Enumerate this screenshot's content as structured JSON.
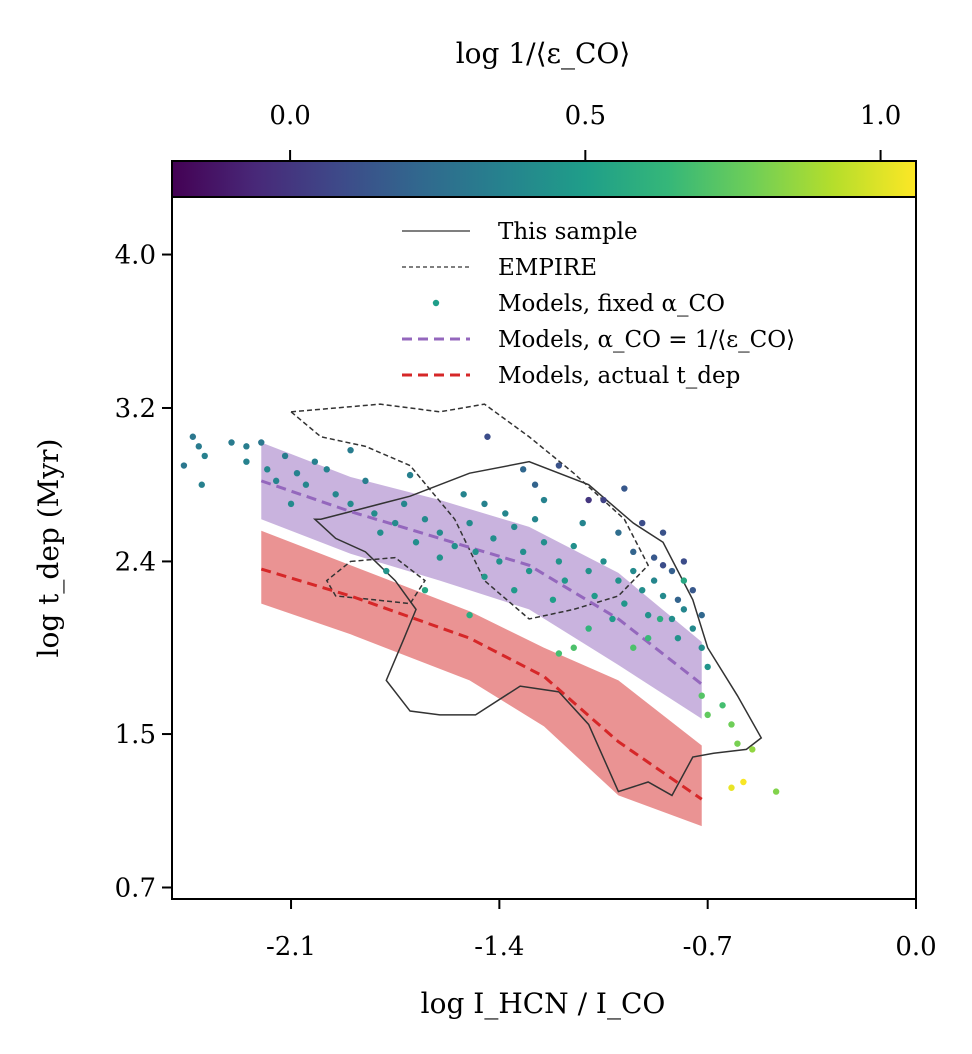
{
  "chart_data": {
    "type": "scatter",
    "title": "",
    "xlabel": "log I_HCN / I_CO",
    "ylabel": "log t_dep (Myr)",
    "colorbar_label": "log 1/⟨ε_CO⟩",
    "xlim": [
      -2.5,
      0.0
    ],
    "ylim": [
      0.64,
      4.3
    ],
    "x_ticks": [
      -2.1,
      -1.4,
      -0.7,
      0.0
    ],
    "x_tick_labels": [
      "-2.1",
      "-1.4",
      "-0.7",
      "0.0"
    ],
    "y_ticks": [
      0.7,
      1.5,
      2.4,
      3.2,
      4.0
    ],
    "y_tick_labels": [
      "0.7",
      "1.5",
      "2.4",
      "3.2",
      "4.0"
    ],
    "colorbar_range": [
      -0.2,
      1.06
    ],
    "colorbar_ticks": [
      0.0,
      0.5,
      1.0
    ],
    "colorbar_tick_labels": [
      "0.0",
      "0.5",
      "1.0"
    ],
    "colorbar_colors": [
      "#440154",
      "#482878",
      "#3e4989",
      "#31688e",
      "#26828e",
      "#1f9e89",
      "#35b779",
      "#6ece58",
      "#b5de2b",
      "#fde725"
    ],
    "legend": {
      "position": "top-center",
      "entries": [
        {
          "label": "This sample",
          "style": "solid-line",
          "color": "#333333"
        },
        {
          "label": "EMPIRE",
          "style": "dashed-line",
          "color": "#333333"
        },
        {
          "label": "Models, fixed α_CO",
          "style": "dot",
          "color": "#1f9e89"
        },
        {
          "label": "Models, α_CO = 1/⟨ε_CO⟩",
          "style": "dashed-line",
          "color": "#9467bd"
        },
        {
          "label": "Models, actual t_dep",
          "style": "dashed-line",
          "color": "#d62728"
        }
      ]
    },
    "series": [
      {
        "name": "Models, α_CO = 1/⟨ε_CO⟩",
        "type": "line-with-band",
        "color": "#9467bd",
        "x": [
          -2.2,
          -1.9,
          -1.6,
          -1.3,
          -1.0,
          -0.72
        ],
        "y": [
          2.82,
          2.66,
          2.52,
          2.38,
          2.1,
          1.76
        ],
        "y_low": [
          2.62,
          2.44,
          2.3,
          2.15,
          1.86,
          1.58
        ],
        "y_high": [
          3.02,
          2.84,
          2.72,
          2.58,
          2.34,
          1.98
        ]
      },
      {
        "name": "Models, actual t_dep",
        "type": "line-with-band",
        "color": "#d62728",
        "x": [
          -2.2,
          -1.9,
          -1.5,
          -1.25,
          -1.0,
          -0.72
        ],
        "y": [
          2.36,
          2.22,
          2.0,
          1.8,
          1.46,
          1.16
        ],
        "y_low": [
          2.18,
          2.02,
          1.78,
          1.54,
          1.18,
          1.02
        ],
        "y_high": [
          2.56,
          2.38,
          2.14,
          1.95,
          1.78,
          1.44
        ]
      },
      {
        "name": "This sample",
        "type": "contour",
        "style": "solid",
        "color": "#333333",
        "contours": [
          {
            "x": [
              -2.0,
              -1.85,
              -1.7,
              -1.5,
              -1.3,
              -1.1,
              -0.95,
              -0.85,
              -0.75,
              -0.7,
              -0.6,
              -0.52,
              -0.57,
              -0.68,
              -0.75,
              -0.82,
              -0.9,
              -1.0,
              -1.1,
              -1.2,
              -1.33,
              -1.48,
              -1.6,
              -1.7,
              -1.78,
              -1.72,
              -1.68,
              -1.75,
              -1.85,
              -1.95,
              -2.02
            ],
            "y": [
              2.62,
              2.68,
              2.74,
              2.86,
              2.92,
              2.8,
              2.6,
              2.5,
              2.2,
              1.95,
              1.7,
              1.48,
              1.42,
              1.4,
              1.38,
              1.18,
              1.25,
              1.2,
              1.55,
              1.72,
              1.75,
              1.6,
              1.6,
              1.62,
              1.78,
              2.0,
              2.15,
              2.3,
              2.45,
              2.52,
              2.62
            ]
          }
        ]
      },
      {
        "name": "EMPIRE",
        "type": "contour",
        "style": "dashed",
        "color": "#333333",
        "contours": [
          {
            "x": [
              -2.1,
              -1.95,
              -1.8,
              -1.6,
              -1.45,
              -1.3,
              -1.15,
              -0.98,
              -0.9,
              -1.0,
              -1.15,
              -1.3,
              -1.45,
              -1.55,
              -1.7,
              -1.85,
              -2.0,
              -2.1
            ],
            "y": [
              3.18,
              3.2,
              3.22,
              3.18,
              3.22,
              3.05,
              2.86,
              2.62,
              2.38,
              2.22,
              2.15,
              2.1,
              2.3,
              2.62,
              2.9,
              3.0,
              3.05,
              3.18
            ]
          },
          {
            "x": [
              -1.9,
              -1.75,
              -1.65,
              -1.7,
              -1.82,
              -1.95,
              -1.98,
              -1.9
            ],
            "y": [
              2.4,
              2.42,
              2.3,
              2.18,
              2.2,
              2.22,
              2.3,
              2.4
            ]
          }
        ]
      },
      {
        "name": "Models, fixed α_CO",
        "type": "scatter",
        "color_by": "log 1/⟨ε_CO⟩",
        "points": [
          [
            -2.43,
            3.05,
            0.3
          ],
          [
            -2.41,
            3.0,
            0.32
          ],
          [
            -2.39,
            2.95,
            0.35
          ],
          [
            -2.46,
            2.9,
            0.3
          ],
          [
            -2.4,
            2.8,
            0.35
          ],
          [
            -2.3,
            3.02,
            0.32
          ],
          [
            -2.25,
            3.0,
            0.34
          ],
          [
            -2.2,
            3.02,
            0.3
          ],
          [
            -2.25,
            2.92,
            0.36
          ],
          [
            -2.18,
            2.88,
            0.38
          ],
          [
            -2.12,
            2.95,
            0.33
          ],
          [
            -2.08,
            2.86,
            0.36
          ],
          [
            -2.05,
            2.8,
            0.38
          ],
          [
            -2.15,
            2.82,
            0.37
          ],
          [
            -2.1,
            2.7,
            0.4
          ],
          [
            -2.02,
            2.92,
            0.35
          ],
          [
            -1.98,
            2.88,
            0.36
          ],
          [
            -1.95,
            2.75,
            0.38
          ],
          [
            -1.9,
            2.7,
            0.4
          ],
          [
            -1.85,
            2.82,
            0.34
          ],
          [
            -1.82,
            2.65,
            0.41
          ],
          [
            -1.8,
            2.55,
            0.42
          ],
          [
            -1.75,
            2.6,
            0.4
          ],
          [
            -1.72,
            2.7,
            0.38
          ],
          [
            -1.68,
            2.5,
            0.42
          ],
          [
            -1.65,
            2.62,
            0.4
          ],
          [
            -1.6,
            2.55,
            0.41
          ],
          [
            -1.55,
            2.48,
            0.43
          ],
          [
            -1.5,
            2.6,
            0.4
          ],
          [
            -1.48,
            2.45,
            0.44
          ],
          [
            -1.45,
            2.7,
            0.36
          ],
          [
            -1.42,
            2.52,
            0.42
          ],
          [
            -1.4,
            2.4,
            0.44
          ],
          [
            -1.35,
            2.58,
            0.4
          ],
          [
            -1.32,
            2.45,
            0.42
          ],
          [
            -1.3,
            2.35,
            0.46
          ],
          [
            -1.28,
            2.62,
            0.38
          ],
          [
            -1.25,
            2.5,
            0.42
          ],
          [
            -1.2,
            2.4,
            0.45
          ],
          [
            -1.18,
            2.3,
            0.47
          ],
          [
            -1.15,
            2.48,
            0.43
          ],
          [
            -1.1,
            2.35,
            0.44
          ],
          [
            -1.08,
            2.22,
            0.48
          ],
          [
            -1.05,
            2.4,
            0.42
          ],
          [
            -1.0,
            2.3,
            0.44
          ],
          [
            -0.98,
            2.18,
            0.46
          ],
          [
            -0.95,
            2.35,
            0.4
          ],
          [
            -0.92,
            2.25,
            0.42
          ],
          [
            -0.9,
            2.12,
            0.44
          ],
          [
            -0.88,
            2.3,
            0.38
          ],
          [
            -0.85,
            2.22,
            0.4
          ],
          [
            -0.82,
            2.1,
            0.42
          ],
          [
            -0.8,
            2.0,
            0.44
          ],
          [
            -0.78,
            2.15,
            0.38
          ],
          [
            -0.75,
            2.05,
            0.4
          ],
          [
            -0.72,
            1.95,
            0.42
          ],
          [
            -0.7,
            1.85,
            0.45
          ],
          [
            -1.9,
            2.98,
            0.33
          ],
          [
            -1.7,
            2.85,
            0.35
          ],
          [
            -1.52,
            2.75,
            0.37
          ],
          [
            -1.38,
            2.65,
            0.38
          ],
          [
            -1.25,
            2.72,
            0.36
          ],
          [
            -1.12,
            2.6,
            0.37
          ],
          [
            -1.6,
            2.42,
            0.44
          ],
          [
            -1.78,
            2.35,
            0.45
          ],
          [
            -1.45,
            2.32,
            0.47
          ],
          [
            -1.22,
            2.2,
            0.5
          ],
          [
            -1.35,
            2.25,
            0.48
          ],
          [
            -1.02,
            2.1,
            0.48
          ],
          [
            -1.44,
            3.05,
            0.1
          ],
          [
            -1.2,
            2.9,
            0.12
          ],
          [
            -1.1,
            2.72,
            0.0
          ],
          [
            -1.05,
            2.72,
            0.05
          ],
          [
            -0.98,
            2.78,
            0.15
          ],
          [
            -0.92,
            2.6,
            0.1
          ],
          [
            -0.85,
            2.55,
            0.12
          ],
          [
            -0.88,
            2.42,
            0.15
          ],
          [
            -0.85,
            2.38,
            0.1
          ],
          [
            -0.82,
            2.35,
            0.18
          ],
          [
            -0.8,
            2.2,
            0.2
          ],
          [
            -0.75,
            2.25,
            0.15
          ],
          [
            -0.72,
            2.12,
            0.22
          ],
          [
            -0.78,
            2.4,
            0.1
          ],
          [
            -0.95,
            2.45,
            0.2
          ],
          [
            -1.28,
            2.8,
            0.2
          ],
          [
            -1.32,
            2.88,
            0.22
          ],
          [
            -1.0,
            2.55,
            0.25
          ],
          [
            -1.65,
            2.25,
            0.55
          ],
          [
            -1.5,
            2.12,
            0.58
          ],
          [
            -1.2,
            1.92,
            0.68
          ],
          [
            -1.15,
            1.95,
            0.7
          ],
          [
            -1.1,
            2.05,
            0.62
          ],
          [
            -0.95,
            1.95,
            0.7
          ],
          [
            -0.9,
            2.0,
            0.65
          ],
          [
            -0.72,
            1.7,
            0.72
          ],
          [
            -0.7,
            1.6,
            0.75
          ],
          [
            -0.65,
            1.65,
            0.68
          ],
          [
            -0.62,
            1.55,
            0.78
          ],
          [
            -0.6,
            1.45,
            0.8
          ],
          [
            -0.55,
            1.42,
            0.85
          ],
          [
            -0.58,
            1.25,
            1.05
          ],
          [
            -0.62,
            1.22,
            1.02
          ],
          [
            -0.47,
            1.2,
            0.82
          ],
          [
            -0.78,
            2.3,
            0.55
          ],
          [
            -0.86,
            2.1,
            0.58
          ]
        ]
      }
    ]
  }
}
